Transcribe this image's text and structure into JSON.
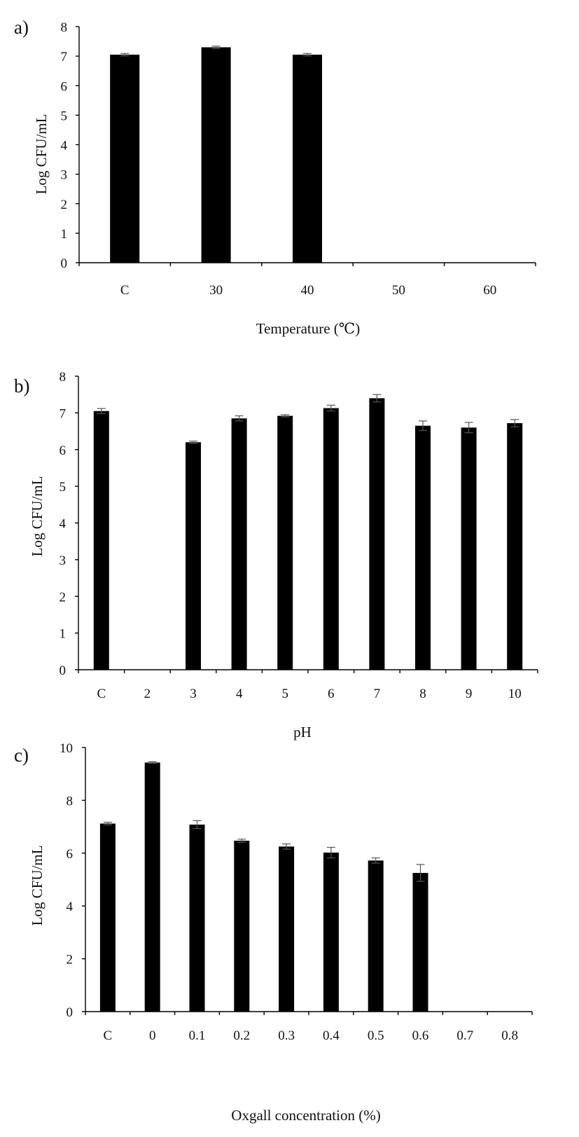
{
  "chart_data": [
    {
      "panel_label": "a)",
      "type": "bar",
      "title": "",
      "categories": [
        "C",
        "30",
        "40",
        "50",
        "60"
      ],
      "values": [
        7.05,
        7.3,
        7.05,
        0,
        0
      ],
      "errors": [
        0.04,
        0.04,
        0.04,
        0,
        0
      ],
      "xlabel": "Temperature (℃)",
      "ylabel": "Log CFU/mL",
      "ylim": [
        0,
        8
      ],
      "yticks": [
        "0",
        "1",
        "2",
        "3",
        "4",
        "5",
        "6",
        "7",
        "8"
      ],
      "grid": false,
      "bar_color": "#000000"
    },
    {
      "panel_label": "b)",
      "type": "bar",
      "title": "",
      "categories": [
        "C",
        "2",
        "3",
        "4",
        "5",
        "6",
        "7",
        "8",
        "9",
        "10"
      ],
      "values": [
        7.05,
        0,
        6.2,
        6.85,
        6.92,
        7.13,
        7.4,
        6.65,
        6.6,
        6.72
      ],
      "errors": [
        0.07,
        0,
        0.03,
        0.07,
        0.03,
        0.08,
        0.1,
        0.13,
        0.14,
        0.1
      ],
      "xlabel": "pH",
      "ylabel": "Log CFU/mL",
      "ylim": [
        0,
        8
      ],
      "yticks": [
        "0",
        "1",
        "2",
        "3",
        "4",
        "5",
        "6",
        "7",
        "8"
      ],
      "grid": false,
      "bar_color": "#000000"
    },
    {
      "panel_label": "c)",
      "type": "bar",
      "title": "",
      "categories": [
        "C",
        "0",
        "0.1",
        "0.2",
        "0.3",
        "0.4",
        "0.5",
        "0.6",
        "0.7",
        "0.8"
      ],
      "values": [
        7.12,
        9.43,
        7.08,
        6.47,
        6.25,
        6.02,
        5.72,
        5.25,
        0,
        0
      ],
      "errors": [
        0.05,
        0.03,
        0.15,
        0.06,
        0.1,
        0.2,
        0.1,
        0.32,
        0,
        0
      ],
      "xlabel": "Oxgall concentration (%)",
      "ylabel": "Log CFU/mL",
      "ylim": [
        0,
        10
      ],
      "yticks": [
        "0",
        "2",
        "4",
        "6",
        "8",
        "10"
      ],
      "grid": false,
      "bar_color": "#000000"
    }
  ]
}
